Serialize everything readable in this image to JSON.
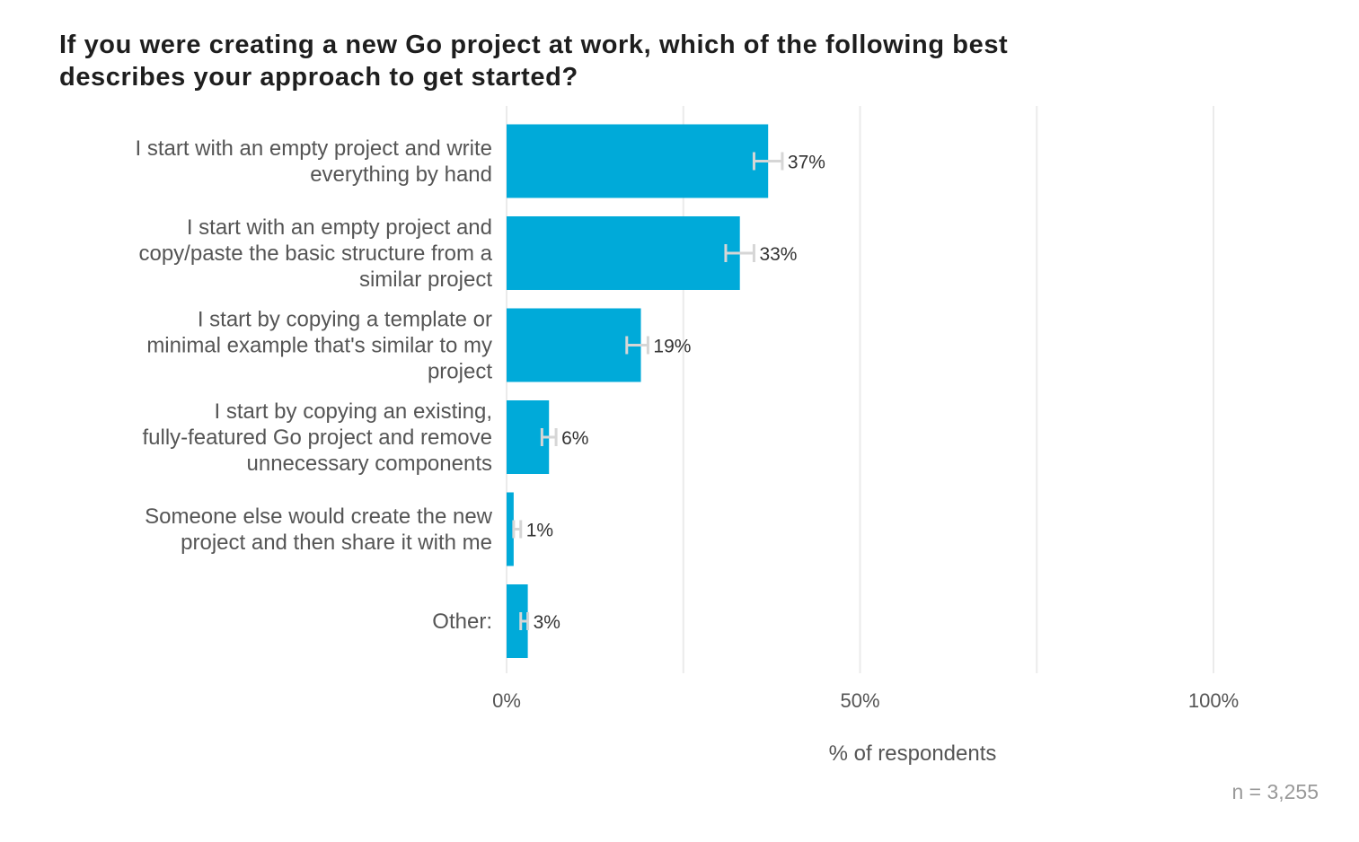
{
  "title_lines": [
    "If you were creating a new Go project at work, which of the following best",
    "describes your approach to get started?"
  ],
  "chart_data": {
    "type": "bar",
    "orientation": "horizontal",
    "categories": [
      [
        "I start with an empty project and write",
        "everything by hand"
      ],
      [
        "I start with an empty project and",
        "copy/paste the basic structure from a",
        "similar project"
      ],
      [
        "I start by copying a template or",
        "minimal example that's similar to my",
        "project"
      ],
      [
        "I start by copying an existing,",
        "fully-featured Go project and remove",
        "unnecessary components"
      ],
      [
        "Someone else would create the new",
        "project and then share it with me"
      ],
      [
        "Other:"
      ]
    ],
    "values": [
      37,
      33,
      19,
      6,
      1,
      3
    ],
    "value_labels": [
      "37%",
      "33%",
      "19%",
      "6%",
      "1%",
      "3%"
    ],
    "error_bars": [
      [
        35,
        39
      ],
      [
        31,
        35
      ],
      [
        17,
        20
      ],
      [
        5,
        7
      ],
      [
        1,
        2
      ],
      [
        2,
        3
      ]
    ],
    "xlim": [
      0,
      100
    ],
    "x_ticks": [
      0,
      50,
      100
    ],
    "x_tick_labels": [
      "0%",
      "50%",
      "100%"
    ],
    "x_minor_gridlines": [
      25,
      75
    ],
    "xlabel": "% of respondents",
    "grid": true,
    "colors": {
      "bar": "#00aad9",
      "error_bar": "#d6d6d6",
      "grid": "#ebebeb"
    }
  },
  "footnote": "n =  3,255"
}
